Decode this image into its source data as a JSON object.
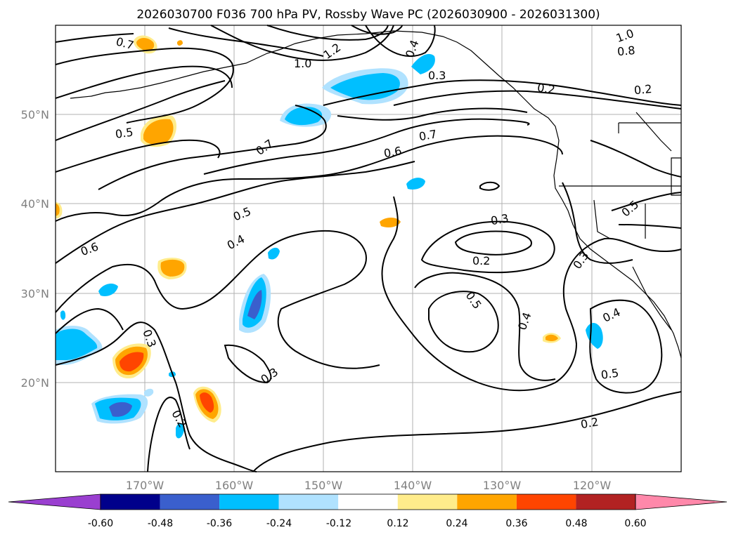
{
  "title": "2026030700 F036 700 hPa PV, Rossby Wave PC (2026030900 - 2026031300)",
  "lat_labels": [
    "50°N",
    "40°N",
    "30°N",
    "20°N"
  ],
  "lon_labels": [
    "170°W",
    "160°W",
    "150°W",
    "140°W",
    "130°W",
    "120°W"
  ],
  "contour_labels": [
    "0.7",
    "1.2",
    "1.0",
    "0.4",
    "0.3",
    "0.2",
    "0.2",
    "1.0",
    "0.8",
    "0.5",
    "0.7",
    "0.7",
    "0.6",
    "0.5",
    "0.4",
    "0.6",
    "0.3",
    "0.2",
    "0.5",
    "0.5",
    "0.4",
    "0.4",
    "0.3",
    "0.3",
    "0.5",
    "0.2",
    "0.2",
    "0.3"
  ],
  "colorbar": {
    "ticks": [
      "-0.60",
      "-0.48",
      "-0.36",
      "-0.24",
      "-0.12",
      "0.12",
      "0.24",
      "0.36",
      "0.48",
      "0.60"
    ],
    "colors": [
      "#9a3fd0",
      "#00008b",
      "#3a5fcd",
      "#00bfff",
      "#b0e2ff",
      "#ffffff",
      "#ffec8b",
      "#ffa500",
      "#ff4500",
      "#b22222",
      "#ff88aa"
    ]
  }
}
